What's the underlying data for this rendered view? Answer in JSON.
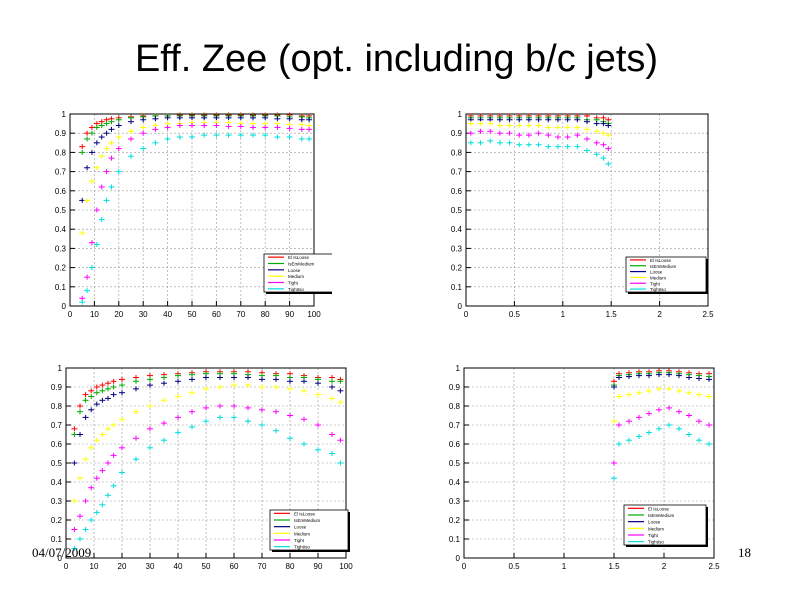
{
  "slide": {
    "title": "Eff. Zee (opt. including b/c jets)",
    "date": "04/07/2009",
    "page": "18"
  },
  "legend_entries": [
    "El IsLoose",
    "IsEmMedium",
    "Loose",
    "Medium",
    "Tight",
    "TightIso"
  ],
  "colors": {
    "El IsLoose": "#ff0000",
    "IsEmMedium": "#00aa00",
    "Loose": "#000080",
    "Medium": "#ffff00",
    "Tight": "#ff00ff",
    "TightIso": "#00dddd"
  },
  "chart_data": [
    {
      "type": "scatter",
      "xlim": [
        0,
        100
      ],
      "ylim": [
        0,
        1
      ],
      "xticks": [
        0,
        10,
        20,
        30,
        40,
        50,
        60,
        70,
        80,
        90,
        100
      ],
      "yticks": [
        0,
        0.1,
        0.2,
        0.3,
        0.4,
        0.5,
        0.6,
        0.7,
        0.8,
        0.9,
        1
      ],
      "grid": true,
      "legend": "bottom-right",
      "x": [
        5,
        7,
        9,
        11,
        13,
        15,
        17,
        20,
        25,
        30,
        35,
        40,
        45,
        50,
        55,
        60,
        65,
        70,
        75,
        80,
        85,
        90,
        95,
        98
      ],
      "series": [
        {
          "name": "El IsLoose",
          "values": [
            0.83,
            0.9,
            0.93,
            0.95,
            0.96,
            0.97,
            0.975,
            0.98,
            0.985,
            0.99,
            0.99,
            0.99,
            0.995,
            0.995,
            0.995,
            0.995,
            0.995,
            0.995,
            0.995,
            0.995,
            0.995,
            0.995,
            0.99,
            0.99
          ]
        },
        {
          "name": "IsEmMedium",
          "values": [
            0.8,
            0.87,
            0.9,
            0.93,
            0.94,
            0.95,
            0.96,
            0.97,
            0.98,
            0.985,
            0.99,
            0.99,
            0.99,
            0.99,
            0.99,
            0.99,
            0.99,
            0.99,
            0.99,
            0.99,
            0.99,
            0.985,
            0.985,
            0.98
          ]
        },
        {
          "name": "Loose",
          "values": [
            0.55,
            0.72,
            0.8,
            0.85,
            0.88,
            0.9,
            0.92,
            0.94,
            0.96,
            0.97,
            0.975,
            0.98,
            0.98,
            0.98,
            0.98,
            0.98,
            0.98,
            0.98,
            0.98,
            0.98,
            0.975,
            0.975,
            0.97,
            0.97
          ]
        },
        {
          "name": "Medium",
          "values": [
            0.38,
            0.55,
            0.65,
            0.72,
            0.78,
            0.82,
            0.85,
            0.88,
            0.91,
            0.93,
            0.94,
            0.95,
            0.95,
            0.955,
            0.955,
            0.955,
            0.955,
            0.95,
            0.95,
            0.95,
            0.95,
            0.945,
            0.945,
            0.94
          ]
        },
        {
          "name": "Tight",
          "values": [
            0.04,
            0.15,
            0.33,
            0.5,
            0.62,
            0.7,
            0.77,
            0.82,
            0.87,
            0.9,
            0.92,
            0.93,
            0.94,
            0.94,
            0.94,
            0.94,
            0.935,
            0.935,
            0.93,
            0.93,
            0.93,
            0.925,
            0.92,
            0.92
          ]
        },
        {
          "name": "TightIso",
          "values": [
            0.02,
            0.08,
            0.2,
            0.32,
            0.45,
            0.55,
            0.62,
            0.7,
            0.78,
            0.82,
            0.85,
            0.87,
            0.88,
            0.88,
            0.89,
            0.89,
            0.89,
            0.89,
            0.89,
            0.89,
            0.88,
            0.88,
            0.87,
            0.87
          ]
        }
      ]
    },
    {
      "type": "scatter",
      "xlim": [
        0,
        2.5
      ],
      "ylim": [
        0,
        1
      ],
      "xticks": [
        0,
        0.5,
        1,
        1.5,
        2,
        2.5
      ],
      "yticks": [
        0,
        0.1,
        0.2,
        0.3,
        0.4,
        0.5,
        0.6,
        0.7,
        0.8,
        0.9,
        1
      ],
      "grid": true,
      "legend": "bottom-right",
      "x": [
        0.05,
        0.15,
        0.25,
        0.35,
        0.45,
        0.55,
        0.65,
        0.75,
        0.85,
        0.95,
        1.05,
        1.15,
        1.25,
        1.35,
        1.42,
        1.47
      ],
      "series": [
        {
          "name": "El IsLoose",
          "values": [
            0.99,
            0.99,
            0.99,
            0.99,
            0.99,
            0.99,
            0.99,
            0.99,
            0.99,
            0.99,
            0.99,
            0.99,
            0.99,
            0.98,
            0.98,
            0.97
          ]
        },
        {
          "name": "IsEmMedium",
          "values": [
            0.98,
            0.98,
            0.98,
            0.98,
            0.98,
            0.98,
            0.98,
            0.98,
            0.98,
            0.98,
            0.98,
            0.98,
            0.97,
            0.97,
            0.96,
            0.95
          ]
        },
        {
          "name": "Loose",
          "values": [
            0.97,
            0.97,
            0.97,
            0.97,
            0.97,
            0.97,
            0.97,
            0.97,
            0.97,
            0.97,
            0.97,
            0.97,
            0.96,
            0.95,
            0.95,
            0.94
          ]
        },
        {
          "name": "Medium",
          "values": [
            0.95,
            0.95,
            0.95,
            0.94,
            0.94,
            0.94,
            0.94,
            0.94,
            0.93,
            0.93,
            0.93,
            0.93,
            0.92,
            0.91,
            0.9,
            0.89
          ]
        },
        {
          "name": "Tight",
          "values": [
            0.9,
            0.91,
            0.91,
            0.9,
            0.9,
            0.89,
            0.89,
            0.9,
            0.89,
            0.88,
            0.88,
            0.89,
            0.87,
            0.85,
            0.84,
            0.82
          ]
        },
        {
          "name": "TightIso",
          "values": [
            0.85,
            0.85,
            0.86,
            0.85,
            0.85,
            0.84,
            0.84,
            0.84,
            0.83,
            0.83,
            0.83,
            0.83,
            0.81,
            0.79,
            0.77,
            0.74
          ]
        }
      ]
    },
    {
      "type": "scatter",
      "xlim": [
        0,
        100
      ],
      "ylim": [
        0,
        1
      ],
      "xticks": [
        0,
        10,
        20,
        30,
        40,
        50,
        60,
        70,
        80,
        90,
        100
      ],
      "yticks": [
        0,
        0.1,
        0.2,
        0.3,
        0.4,
        0.5,
        0.6,
        0.7,
        0.8,
        0.9,
        1
      ],
      "grid": true,
      "legend": "bottom-right",
      "x": [
        3,
        5,
        7,
        9,
        11,
        13,
        15,
        17,
        20,
        25,
        30,
        35,
        40,
        45,
        50,
        55,
        60,
        65,
        70,
        75,
        80,
        85,
        90,
        95,
        98
      ],
      "series": [
        {
          "name": "El IsLoose",
          "values": [
            0.68,
            0.8,
            0.86,
            0.88,
            0.9,
            0.91,
            0.92,
            0.93,
            0.94,
            0.95,
            0.96,
            0.965,
            0.97,
            0.975,
            0.98,
            0.98,
            0.98,
            0.98,
            0.975,
            0.97,
            0.97,
            0.96,
            0.95,
            0.95,
            0.94
          ]
        },
        {
          "name": "IsEmMedium",
          "values": [
            0.65,
            0.77,
            0.83,
            0.85,
            0.87,
            0.88,
            0.89,
            0.9,
            0.91,
            0.93,
            0.94,
            0.95,
            0.96,
            0.965,
            0.97,
            0.97,
            0.97,
            0.965,
            0.96,
            0.96,
            0.95,
            0.95,
            0.94,
            0.93,
            0.93
          ]
        },
        {
          "name": "Loose",
          "values": [
            0.5,
            0.65,
            0.74,
            0.78,
            0.81,
            0.83,
            0.84,
            0.86,
            0.87,
            0.89,
            0.91,
            0.92,
            0.93,
            0.94,
            0.95,
            0.95,
            0.95,
            0.95,
            0.94,
            0.94,
            0.93,
            0.93,
            0.92,
            0.9,
            0.88
          ]
        },
        {
          "name": "Medium",
          "values": [
            0.3,
            0.42,
            0.52,
            0.58,
            0.62,
            0.65,
            0.68,
            0.7,
            0.73,
            0.77,
            0.8,
            0.83,
            0.85,
            0.87,
            0.89,
            0.9,
            0.91,
            0.91,
            0.9,
            0.9,
            0.89,
            0.88,
            0.86,
            0.84,
            0.82
          ]
        },
        {
          "name": "Tight",
          "values": [
            0.15,
            0.22,
            0.3,
            0.37,
            0.42,
            0.46,
            0.5,
            0.54,
            0.58,
            0.63,
            0.68,
            0.71,
            0.74,
            0.77,
            0.79,
            0.8,
            0.8,
            0.79,
            0.78,
            0.77,
            0.75,
            0.73,
            0.7,
            0.65,
            0.62
          ]
        },
        {
          "name": "TightIso",
          "values": [
            0.05,
            0.1,
            0.15,
            0.2,
            0.24,
            0.28,
            0.33,
            0.38,
            0.45,
            0.52,
            0.58,
            0.62,
            0.66,
            0.69,
            0.72,
            0.74,
            0.74,
            0.72,
            0.7,
            0.67,
            0.63,
            0.6,
            0.57,
            0.55,
            0.5
          ]
        }
      ]
    },
    {
      "type": "scatter",
      "xlim": [
        0,
        2.5
      ],
      "ylim": [
        0,
        1
      ],
      "xticks": [
        0,
        0.5,
        1,
        1.5,
        2,
        2.5
      ],
      "yticks": [
        0,
        0.1,
        0.2,
        0.3,
        0.4,
        0.5,
        0.6,
        0.7,
        0.8,
        0.9,
        1
      ],
      "grid": true,
      "legend": "bottom-right",
      "x": [
        1.5,
        1.55,
        1.65,
        1.75,
        1.85,
        1.95,
        2.05,
        2.15,
        2.25,
        2.35,
        2.45
      ],
      "series": [
        {
          "name": "El IsLoose",
          "values": [
            0.93,
            0.97,
            0.975,
            0.98,
            0.98,
            0.985,
            0.985,
            0.98,
            0.975,
            0.97,
            0.97
          ]
        },
        {
          "name": "IsEmMedium",
          "values": [
            0.91,
            0.96,
            0.965,
            0.97,
            0.97,
            0.975,
            0.975,
            0.97,
            0.965,
            0.96,
            0.955
          ]
        },
        {
          "name": "Loose",
          "values": [
            0.9,
            0.95,
            0.955,
            0.96,
            0.96,
            0.965,
            0.965,
            0.96,
            0.95,
            0.945,
            0.94
          ]
        },
        {
          "name": "Medium",
          "values": [
            0.72,
            0.85,
            0.86,
            0.87,
            0.88,
            0.89,
            0.89,
            0.88,
            0.87,
            0.86,
            0.85
          ]
        },
        {
          "name": "Tight",
          "values": [
            0.5,
            0.7,
            0.72,
            0.74,
            0.76,
            0.78,
            0.79,
            0.77,
            0.75,
            0.72,
            0.7
          ]
        },
        {
          "name": "TightIso",
          "values": [
            0.42,
            0.6,
            0.62,
            0.64,
            0.66,
            0.68,
            0.7,
            0.68,
            0.65,
            0.62,
            0.6
          ]
        }
      ]
    }
  ]
}
